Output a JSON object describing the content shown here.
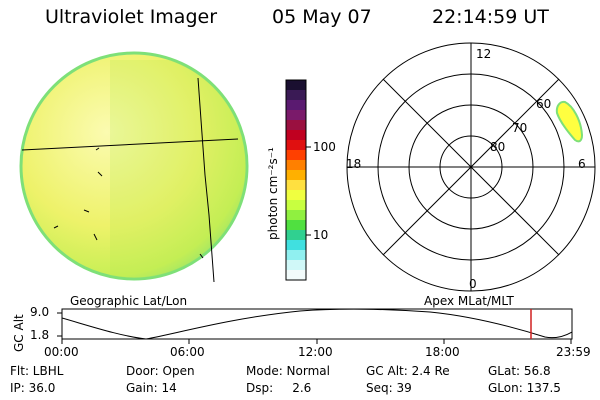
{
  "header": {
    "instrument": "Ultraviolet Imager",
    "date": "05 May 07",
    "time": "22:14:59 UT"
  },
  "colorbar": {
    "ylabel": "photon cm⁻²s⁻¹",
    "ticks": [
      "100",
      "10"
    ],
    "colors": [
      "#1a0f30",
      "#3a1a55",
      "#5a1a70",
      "#7a1a6a",
      "#9a1040",
      "#c00020",
      "#e01010",
      "#ff4000",
      "#ff8000",
      "#ffb000",
      "#ffe040",
      "#f0ff40",
      "#c8ff40",
      "#90f040",
      "#50e040",
      "#30d090",
      "#40e0e0",
      "#90f0f0",
      "#d0f8f8",
      "#f2fbfb"
    ]
  },
  "left_panel": {
    "caption": "Geographic Lat/Lon",
    "disk_color": "#eef26a",
    "limb_color": "#7ee078",
    "grid_color": "#000000"
  },
  "right_panel": {
    "caption": "Apex MLat/MLT",
    "mlt_labels": {
      "top": "12",
      "left": "18",
      "right": "6",
      "bottom": "0"
    },
    "lat_labels": [
      "60",
      "70",
      "80"
    ],
    "aurora_color": "#ffff40"
  },
  "altitude": {
    "ylabel": "GC Alt",
    "y_ticks": [
      "9.0",
      "1.8"
    ],
    "x_ticks": [
      "00:00",
      "06:00",
      "12:00",
      "18:00",
      "23:59"
    ],
    "current_marker_color": "#d02020",
    "current_time": "22:14"
  },
  "info": {
    "row1": {
      "flt": "Flt: LBHL",
      "door": "Door: Open",
      "mode": "Mode: Normal",
      "gcalt": "GC Alt: 2.4 Re",
      "glat": "GLat: 56.8"
    },
    "row2": {
      "ip": "IP: 36.0",
      "gain": "Gain: 14",
      "dsp": "Dsp:     2.6",
      "seq": "Seq: 39",
      "glon": "GLon: 137.5"
    }
  }
}
